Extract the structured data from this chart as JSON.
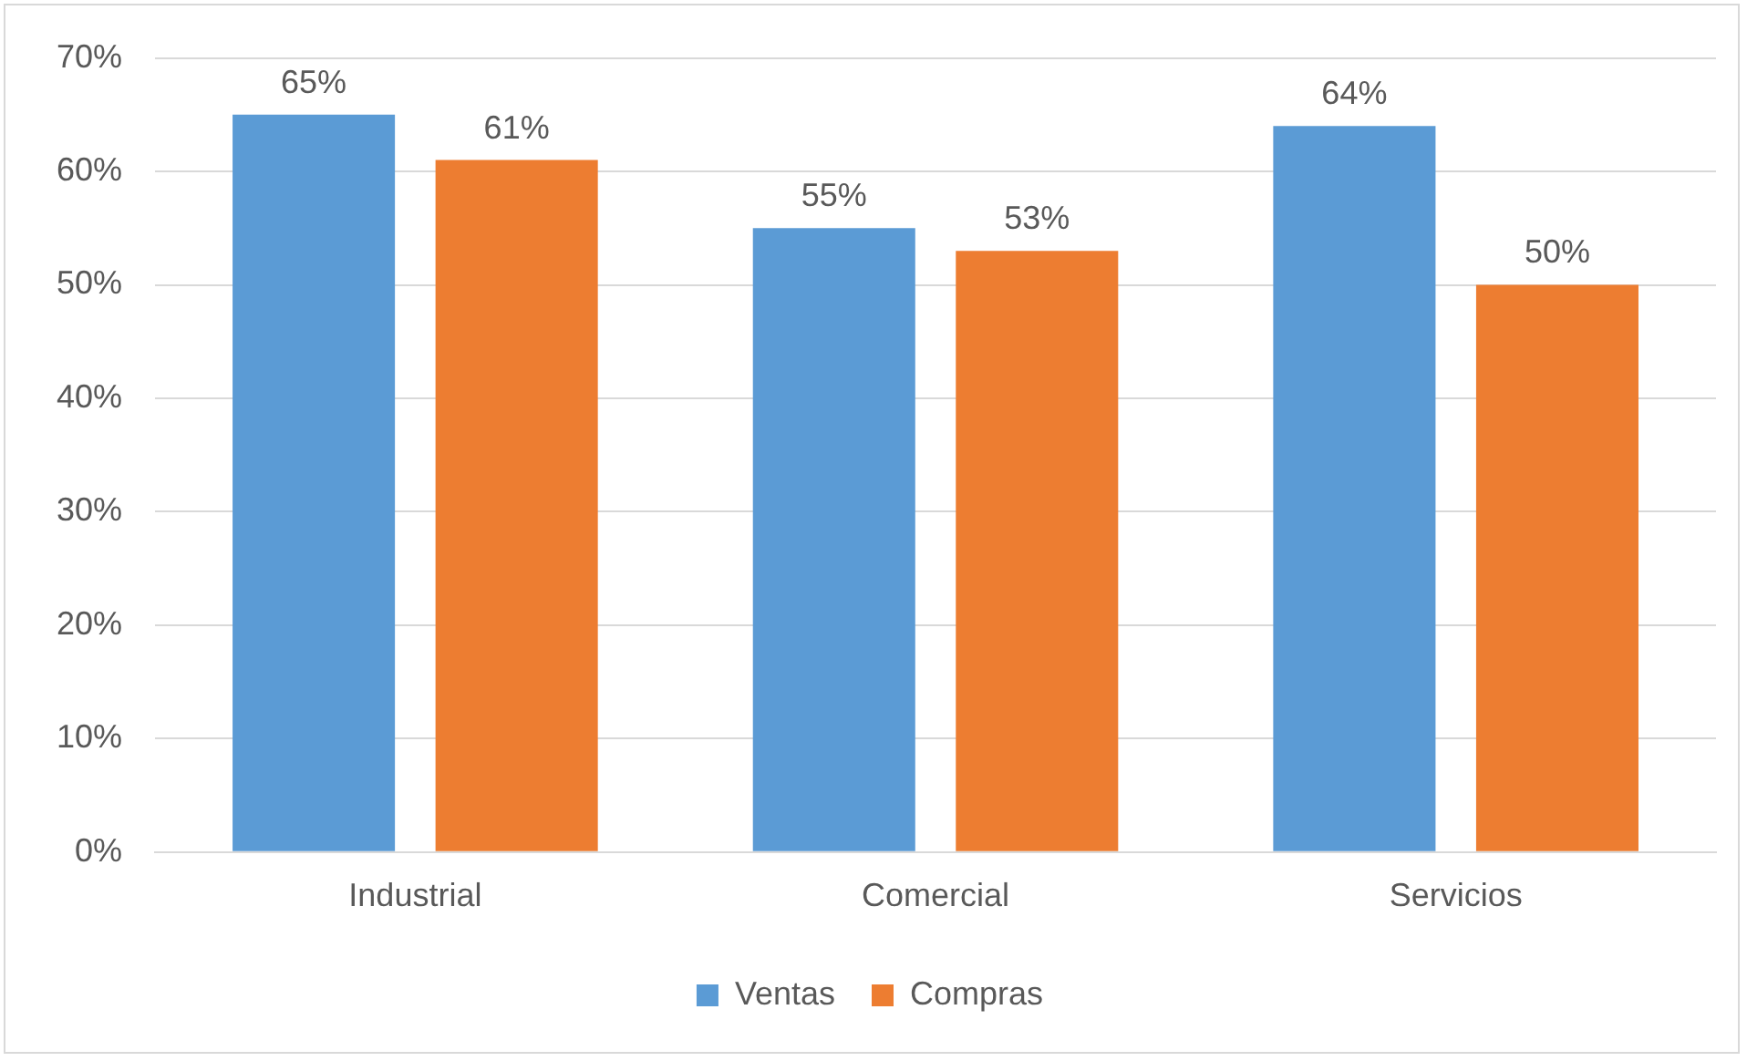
{
  "chart_data": {
    "type": "bar",
    "categories": [
      "Industrial",
      "Comercial",
      "Servicios"
    ],
    "series": [
      {
        "name": "Ventas",
        "color": "#5b9bd5",
        "values": [
          65,
          55,
          64
        ],
        "value_labels": [
          "65%",
          "55%",
          "64%"
        ]
      },
      {
        "name": "Compras",
        "color": "#ed7d31",
        "values": [
          61,
          53,
          50
        ],
        "value_labels": [
          "61%",
          "53%",
          "50%"
        ]
      }
    ],
    "ylim": [
      0,
      70
    ],
    "yticks": [
      {
        "value": 0,
        "label": "0%"
      },
      {
        "value": 10,
        "label": "10%"
      },
      {
        "value": 20,
        "label": "20%"
      },
      {
        "value": 30,
        "label": "30%"
      },
      {
        "value": 40,
        "label": "40%"
      },
      {
        "value": 50,
        "label": "50%"
      },
      {
        "value": 60,
        "label": "60%"
      },
      {
        "value": 70,
        "label": "70%"
      }
    ],
    "grid": "y",
    "legend": "bottom"
  }
}
